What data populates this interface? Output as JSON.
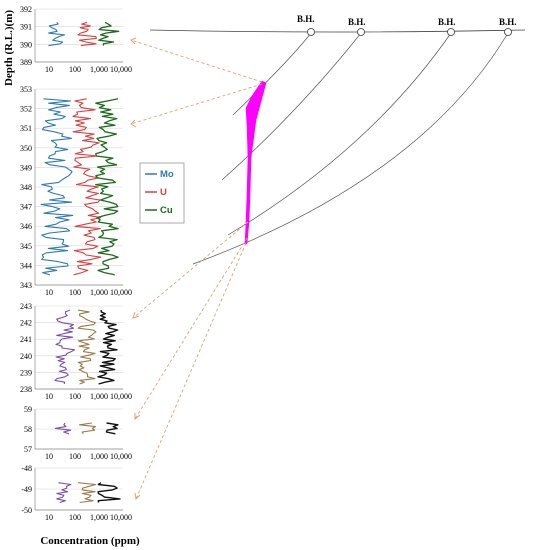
{
  "chart_data": {
    "type": "line",
    "ylabel": "Depth (R.L.)(m)",
    "xlabel": "Concentration (ppm)",
    "x_scale": "log",
    "x_ticks": [
      "10",
      "100",
      "1,000",
      "10,000"
    ],
    "series_names": [
      "Mo",
      "U",
      "Cu"
    ],
    "colors": {
      "Mo": "#2e7bb0",
      "U": "#d94040",
      "Cu": "#1e6b1e",
      "ore_zone": "#ff00ff",
      "arrows": "#e0a070",
      "trace_mix": "#9a7b4a",
      "trace_purple": "#7a4fa8"
    },
    "panels": [
      {
        "ylim": [
          389,
          392
        ],
        "y_ticks": [
          "389",
          "390",
          "391",
          "392"
        ]
      },
      {
        "ylim": [
          343,
          353
        ],
        "y_ticks": [
          "343",
          "344",
          "345",
          "346",
          "347",
          "348",
          "349",
          "350",
          "351",
          "352",
          "353"
        ]
      },
      {
        "ylim": [
          238,
          243
        ],
        "y_ticks": [
          "238",
          "239",
          "240",
          "241",
          "242",
          "243"
        ]
      },
      {
        "ylim": [
          57,
          59
        ],
        "y_ticks": [
          "57",
          "58",
          "59"
        ]
      },
      {
        "ylim": [
          -50,
          -48
        ],
        "y_ticks": [
          "-50",
          "-49",
          "-48"
        ]
      }
    ]
  },
  "section": {
    "boreholes": [
      "B.H.",
      "B.H.",
      "B.H.",
      "B.H."
    ]
  }
}
